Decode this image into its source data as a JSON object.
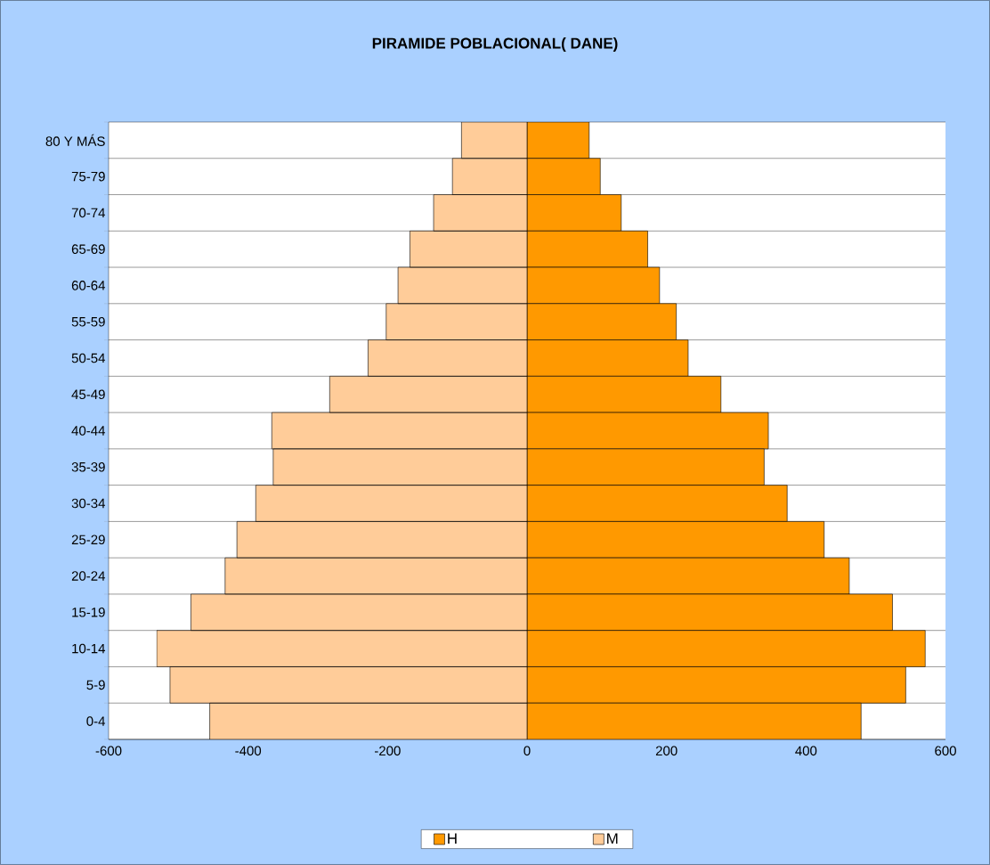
{
  "chart_data": {
    "type": "bar",
    "orientation": "horizontal",
    "title": "PIRAMIDE POBLACIONAL( DANE)",
    "categories": [
      "80 Y MÁS",
      "75-79",
      "70-74",
      "65-69",
      "60-64",
      "55-59",
      "50-54",
      "45-49",
      "40-44",
      "35-39",
      "30-34",
      "25-29",
      "20-24",
      "15-19",
      "10-14",
      "5-9",
      "0-4"
    ],
    "series": [
      {
        "name": "H",
        "color": "#ff9900",
        "values": [
          89,
          105,
          135,
          173,
          190,
          214,
          231,
          278,
          346,
          340,
          373,
          426,
          462,
          524,
          571,
          543,
          479
        ]
      },
      {
        "name": "M",
        "color": "#ffcc99",
        "values": [
          -94,
          -107,
          -134,
          -168,
          -185,
          -202,
          -228,
          -283,
          -366,
          -364,
          -389,
          -416,
          -433,
          -482,
          -531,
          -512,
          -455
        ]
      }
    ],
    "xlim": [
      -600,
      600
    ],
    "xticks": [
      -600,
      -400,
      -200,
      0,
      200,
      400,
      600
    ],
    "stacked": true,
    "grid": "y",
    "legend": "bottom"
  }
}
